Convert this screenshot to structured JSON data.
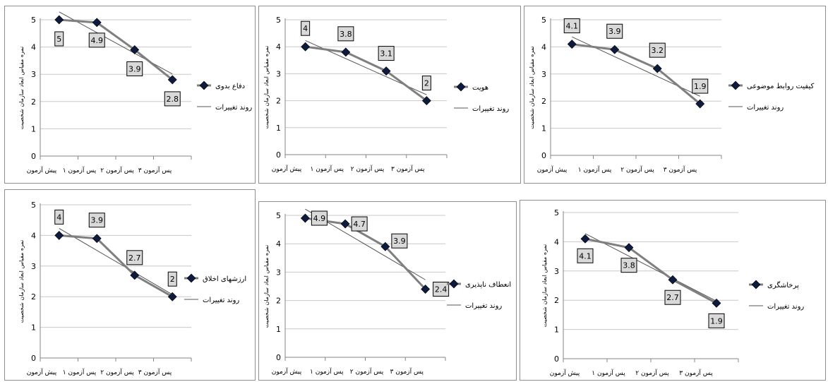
{
  "common": {
    "categories": [
      "پیش آزمون",
      "پس آزمون ۱",
      "پس آزمون ۲",
      "پس آزمون ۳"
    ],
    "ylabel": "نمره مقیاس ابعاد سازمان شخصیت",
    "trend_label": "روند تغییرات",
    "colors": {
      "series": "#7f7f7f",
      "marker": "#0d1b3e",
      "trend": "#555555",
      "grid": "#c8c8c8",
      "label_bg": "#d9d9d9"
    }
  },
  "chart_data": [
    {
      "type": "line",
      "categories": [
        "پیش آزمون",
        "پس آزمون ۱",
        "پس آزمون ۲",
        "پس آزمون ۳"
      ],
      "series": [
        {
          "name": "دفاع بدوی",
          "values": [
            5,
            4.9,
            3.9,
            2.8
          ]
        }
      ],
      "trend_name": "روند تغییرات",
      "data_labels": [
        "5",
        "4.9",
        "3.9",
        "2.8"
      ],
      "ylim": [
        0,
        5
      ],
      "yticks": [
        "0",
        "1",
        "2",
        "3",
        "4",
        "5"
      ],
      "grid": true,
      "legend": "right"
    },
    {
      "type": "line",
      "categories": [
        "پیش آزمون",
        "پس آزمون ۱",
        "پس آزمون ۲",
        "پس آزمون ۳"
      ],
      "series": [
        {
          "name": "هویت",
          "values": [
            4,
            3.8,
            3.1,
            2
          ]
        }
      ],
      "trend_name": "روند تغییرات",
      "data_labels": [
        "4",
        "3.8",
        "3.1",
        "2"
      ],
      "ylim": [
        0,
        5
      ],
      "yticks": [
        "0",
        "1",
        "2",
        "3",
        "4",
        "5"
      ],
      "grid": true,
      "legend": "right"
    },
    {
      "type": "line",
      "categories": [
        "پیش آزمون",
        "پس آزمون ۱",
        "پس آزمون ۲",
        "پس آزمون ۳"
      ],
      "series": [
        {
          "name": "کیفیت روابط موضوعی",
          "values": [
            4.1,
            3.9,
            3.2,
            1.9
          ]
        }
      ],
      "trend_name": "روند تغییرات",
      "data_labels": [
        "4.1",
        "3.9",
        "3.2",
        "1.9"
      ],
      "ylim": [
        0,
        5
      ],
      "yticks": [
        "0",
        "1",
        "2",
        "3",
        "4",
        "5"
      ],
      "grid": true,
      "legend": "right"
    },
    {
      "type": "line",
      "categories": [
        "پیش آزمون",
        "پس آزمون ۱",
        "پس آزمون ۲",
        "پس آزمون ۳"
      ],
      "series": [
        {
          "name": "ارزشهای اخلاق",
          "values": [
            4,
            3.9,
            2.7,
            2
          ]
        }
      ],
      "trend_name": "روند تغییرات",
      "data_labels": [
        "4",
        "3.9",
        "2.7",
        "2"
      ],
      "ylim": [
        0,
        5
      ],
      "yticks": [
        "0",
        "1",
        "2",
        "3",
        "4",
        "5"
      ],
      "grid": true,
      "legend": "right"
    },
    {
      "type": "line",
      "categories": [
        "پیش آزمون",
        "پس آزمون ۱",
        "پس آزمون ۲",
        "پس آزمون ۳"
      ],
      "series": [
        {
          "name": "انعطاف ناپذیری",
          "values": [
            4.9,
            4.7,
            3.9,
            2.4
          ]
        }
      ],
      "trend_name": "روند تغییرات",
      "data_labels": [
        "4.9",
        "4.7",
        "3.9",
        "2.4"
      ],
      "ylim": [
        0,
        5
      ],
      "yticks": [
        "0",
        "1",
        "2",
        "3",
        "4",
        "5"
      ],
      "grid": true,
      "legend": "right"
    },
    {
      "type": "line",
      "categories": [
        "پیش آزمون",
        "پس آزمون ۱",
        "پس آزمون ۲",
        "پس آزمون ۳"
      ],
      "series": [
        {
          "name": "پرخاشگری",
          "values": [
            4.1,
            3.8,
            2.7,
            1.9
          ]
        }
      ],
      "trend_name": "روند تغییرات",
      "data_labels": [
        "4.1",
        "3.8",
        "2.7",
        "1.9"
      ],
      "ylim": [
        0,
        5
      ],
      "yticks": [
        "0",
        "1",
        "2",
        "3",
        "4",
        "5"
      ],
      "grid": true,
      "legend": "right"
    }
  ]
}
